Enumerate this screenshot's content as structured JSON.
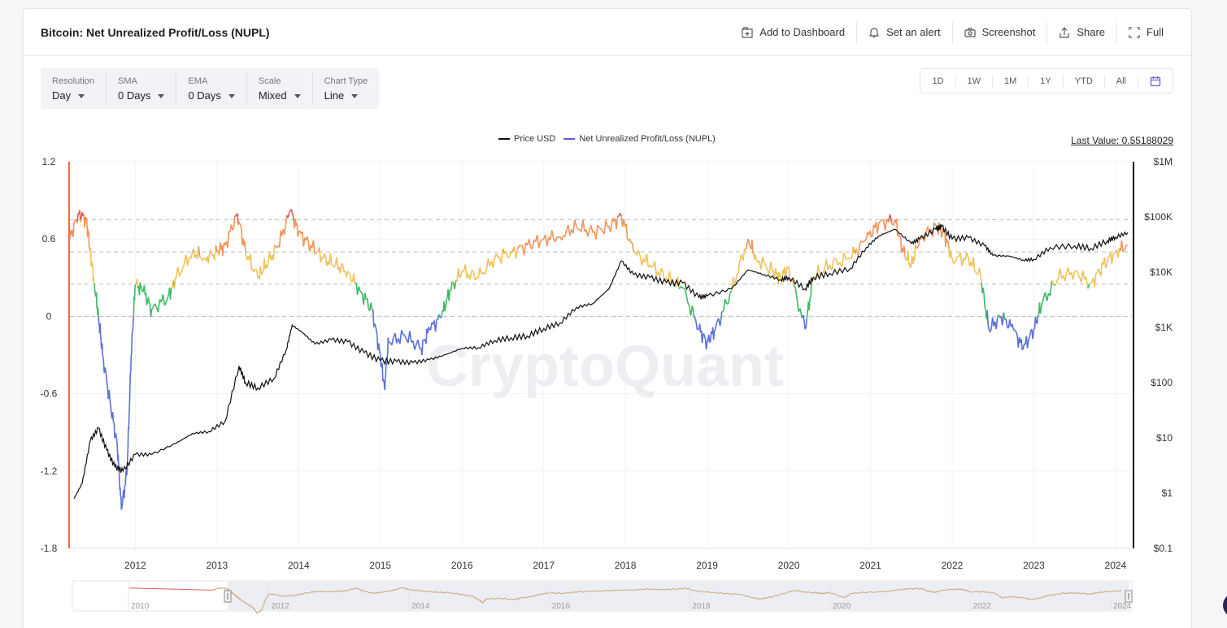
{
  "header": {
    "title": "Bitcoin: Net Unrealized Profit/Loss (NUPL)",
    "actions": [
      {
        "label": "Add to Dashboard",
        "icon": "add-dashboard-icon"
      },
      {
        "label": "Set an alert",
        "icon": "bell-icon"
      },
      {
        "label": "Screenshot",
        "icon": "camera-icon"
      },
      {
        "label": "Share",
        "icon": "share-icon"
      },
      {
        "label": "Full",
        "icon": "fullscreen-icon"
      }
    ]
  },
  "controls": [
    {
      "label": "Resolution",
      "value": "Day"
    },
    {
      "label": "SMA",
      "value": "0 Days"
    },
    {
      "label": "EMA",
      "value": "0 Days"
    },
    {
      "label": "Scale",
      "value": "Mixed"
    },
    {
      "label": "Chart Type",
      "value": "Line"
    }
  ],
  "ranges": [
    "1D",
    "1W",
    "1M",
    "1Y",
    "YTD",
    "All"
  ],
  "last_value": "Last Value: 0.55188029",
  "watermark": "CryptoQuant",
  "colors": {
    "price": "#111111",
    "nupl_legend": "#6a4fd8",
    "blue": "#5b6fd6",
    "green": "#3dba63",
    "yellow": "#f0c35a",
    "orange": "#f0955a",
    "red": "#e05b5b",
    "left_axis_line": "#f26b3a"
  },
  "chart_data": {
    "type": "line",
    "title": "Bitcoin: Net Unrealized Profit/Loss (NUPL)",
    "legend": [
      "Price USD",
      "Net Unrealized Profit/Loss (NUPL)"
    ],
    "legend_position": "top-center",
    "y_left": {
      "ticks": [
        "1.2",
        "0.6",
        "0",
        "-0.6",
        "-1.2",
        "-1.8"
      ],
      "range": [
        -1.8,
        1.2
      ]
    },
    "y_right": {
      "ticks": [
        "$1M",
        "$100K",
        "$10K",
        "$1K",
        "$100",
        "$10",
        "$1",
        "$0.1"
      ],
      "scale": "log",
      "range": [
        0.1,
        1000000
      ]
    },
    "x_ticks": [
      "2012",
      "2013",
      "2014",
      "2015",
      "2016",
      "2017",
      "2018",
      "2019",
      "2020",
      "2021",
      "2022",
      "2023",
      "2024"
    ],
    "x_range": [
      2011.2,
      2024.2
    ],
    "reference_lines": [
      0.75,
      0.5,
      0.25,
      0
    ],
    "series": [
      {
        "name": "Price USD",
        "axis": "right",
        "points": [
          [
            2011.25,
            0.8
          ],
          [
            2011.35,
            1.5
          ],
          [
            2011.45,
            9
          ],
          [
            2011.55,
            15
          ],
          [
            2011.65,
            6
          ],
          [
            2011.75,
            3
          ],
          [
            2011.85,
            2.5
          ],
          [
            2012.0,
            5
          ],
          [
            2012.2,
            5
          ],
          [
            2012.5,
            8
          ],
          [
            2012.7,
            12
          ],
          [
            2012.9,
            13
          ],
          [
            2013.1,
            20
          ],
          [
            2013.27,
            200
          ],
          [
            2013.35,
            100
          ],
          [
            2013.5,
            80
          ],
          [
            2013.7,
            120
          ],
          [
            2013.85,
            400
          ],
          [
            2013.92,
            1100
          ],
          [
            2014.05,
            800
          ],
          [
            2014.2,
            500
          ],
          [
            2014.4,
            600
          ],
          [
            2014.6,
            550
          ],
          [
            2014.8,
            350
          ],
          [
            2015.0,
            250
          ],
          [
            2015.2,
            240
          ],
          [
            2015.4,
            230
          ],
          [
            2015.6,
            260
          ],
          [
            2015.8,
            320
          ],
          [
            2016.0,
            420
          ],
          [
            2016.2,
            430
          ],
          [
            2016.4,
            580
          ],
          [
            2016.6,
            650
          ],
          [
            2016.8,
            700
          ],
          [
            2017.0,
            950
          ],
          [
            2017.2,
            1200
          ],
          [
            2017.4,
            2300
          ],
          [
            2017.6,
            2700
          ],
          [
            2017.8,
            5000
          ],
          [
            2017.95,
            16000
          ],
          [
            2018.1,
            9000
          ],
          [
            2018.3,
            8000
          ],
          [
            2018.5,
            6500
          ],
          [
            2018.7,
            6400
          ],
          [
            2018.9,
            3500
          ],
          [
            2019.0,
            3700
          ],
          [
            2019.3,
            5000
          ],
          [
            2019.5,
            11000
          ],
          [
            2019.7,
            9000
          ],
          [
            2019.9,
            7300
          ],
          [
            2020.0,
            8000
          ],
          [
            2020.2,
            5000
          ],
          [
            2020.3,
            8000
          ],
          [
            2020.5,
            9500
          ],
          [
            2020.75,
            11500
          ],
          [
            2020.95,
            28000
          ],
          [
            2021.1,
            45000
          ],
          [
            2021.3,
            60000
          ],
          [
            2021.5,
            33000
          ],
          [
            2021.6,
            40000
          ],
          [
            2021.8,
            60000
          ],
          [
            2021.87,
            67000
          ],
          [
            2022.0,
            40000
          ],
          [
            2022.2,
            42000
          ],
          [
            2022.4,
            30000
          ],
          [
            2022.5,
            20000
          ],
          [
            2022.7,
            19500
          ],
          [
            2022.87,
            16500
          ],
          [
            2023.0,
            17000
          ],
          [
            2023.2,
            28000
          ],
          [
            2023.5,
            30000
          ],
          [
            2023.7,
            27000
          ],
          [
            2023.9,
            37000
          ],
          [
            2024.0,
            43000
          ],
          [
            2024.15,
            52000
          ]
        ]
      },
      {
        "name": "Net Unrealized Profit/Loss (NUPL)",
        "axis": "left",
        "points": [
          [
            2011.2,
            0.6
          ],
          [
            2011.3,
            0.8
          ],
          [
            2011.4,
            0.75
          ],
          [
            2011.45,
            0.5
          ],
          [
            2011.5,
            0.25
          ],
          [
            2011.55,
            0.0
          ],
          [
            2011.6,
            -0.3
          ],
          [
            2011.7,
            -0.7
          ],
          [
            2011.78,
            -1.0
          ],
          [
            2011.83,
            -1.5
          ],
          [
            2011.9,
            -1.2
          ],
          [
            2011.95,
            -0.3
          ],
          [
            2012.0,
            0.25
          ],
          [
            2012.1,
            0.2
          ],
          [
            2012.2,
            0.05
          ],
          [
            2012.4,
            0.15
          ],
          [
            2012.5,
            0.3
          ],
          [
            2012.7,
            0.5
          ],
          [
            2012.85,
            0.45
          ],
          [
            2013.0,
            0.5
          ],
          [
            2013.1,
            0.55
          ],
          [
            2013.25,
            0.8
          ],
          [
            2013.35,
            0.5
          ],
          [
            2013.5,
            0.3
          ],
          [
            2013.6,
            0.4
          ],
          [
            2013.75,
            0.55
          ],
          [
            2013.9,
            0.82
          ],
          [
            2014.0,
            0.65
          ],
          [
            2014.15,
            0.55
          ],
          [
            2014.3,
            0.45
          ],
          [
            2014.45,
            0.4
          ],
          [
            2014.6,
            0.35
          ],
          [
            2014.75,
            0.2
          ],
          [
            2014.9,
            0.05
          ],
          [
            2015.0,
            -0.3
          ],
          [
            2015.05,
            -0.55
          ],
          [
            2015.1,
            -0.2
          ],
          [
            2015.3,
            -0.15
          ],
          [
            2015.5,
            -0.25
          ],
          [
            2015.6,
            -0.1
          ],
          [
            2015.75,
            0.0
          ],
          [
            2015.85,
            0.2
          ],
          [
            2016.0,
            0.35
          ],
          [
            2016.2,
            0.3
          ],
          [
            2016.4,
            0.45
          ],
          [
            2016.6,
            0.5
          ],
          [
            2016.8,
            0.55
          ],
          [
            2017.0,
            0.6
          ],
          [
            2017.2,
            0.62
          ],
          [
            2017.4,
            0.7
          ],
          [
            2017.6,
            0.65
          ],
          [
            2017.8,
            0.7
          ],
          [
            2017.95,
            0.78
          ],
          [
            2018.1,
            0.5
          ],
          [
            2018.3,
            0.4
          ],
          [
            2018.5,
            0.3
          ],
          [
            2018.7,
            0.22
          ],
          [
            2018.9,
            -0.1
          ],
          [
            2019.0,
            -0.2
          ],
          [
            2019.1,
            -0.1
          ],
          [
            2019.3,
            0.2
          ],
          [
            2019.5,
            0.6
          ],
          [
            2019.6,
            0.45
          ],
          [
            2019.8,
            0.35
          ],
          [
            2019.9,
            0.3
          ],
          [
            2020.0,
            0.38
          ],
          [
            2020.2,
            -0.1
          ],
          [
            2020.3,
            0.3
          ],
          [
            2020.5,
            0.4
          ],
          [
            2020.75,
            0.45
          ],
          [
            2020.95,
            0.6
          ],
          [
            2021.1,
            0.72
          ],
          [
            2021.3,
            0.75
          ],
          [
            2021.4,
            0.5
          ],
          [
            2021.5,
            0.4
          ],
          [
            2021.6,
            0.6
          ],
          [
            2021.8,
            0.7
          ],
          [
            2021.9,
            0.65
          ],
          [
            2022.0,
            0.45
          ],
          [
            2022.2,
            0.45
          ],
          [
            2022.35,
            0.3
          ],
          [
            2022.45,
            -0.1
          ],
          [
            2022.6,
            0.0
          ],
          [
            2022.75,
            -0.1
          ],
          [
            2022.87,
            -0.25
          ],
          [
            2023.0,
            -0.1
          ],
          [
            2023.1,
            0.1
          ],
          [
            2023.3,
            0.3
          ],
          [
            2023.5,
            0.35
          ],
          [
            2023.7,
            0.25
          ],
          [
            2023.85,
            0.4
          ],
          [
            2024.0,
            0.5
          ],
          [
            2024.15,
            0.55
          ]
        ]
      }
    ],
    "navigator": {
      "x_ticks": [
        "2010",
        "2012",
        "2014",
        "2016",
        "2018",
        "2020",
        "2022",
        "2024"
      ]
    }
  }
}
